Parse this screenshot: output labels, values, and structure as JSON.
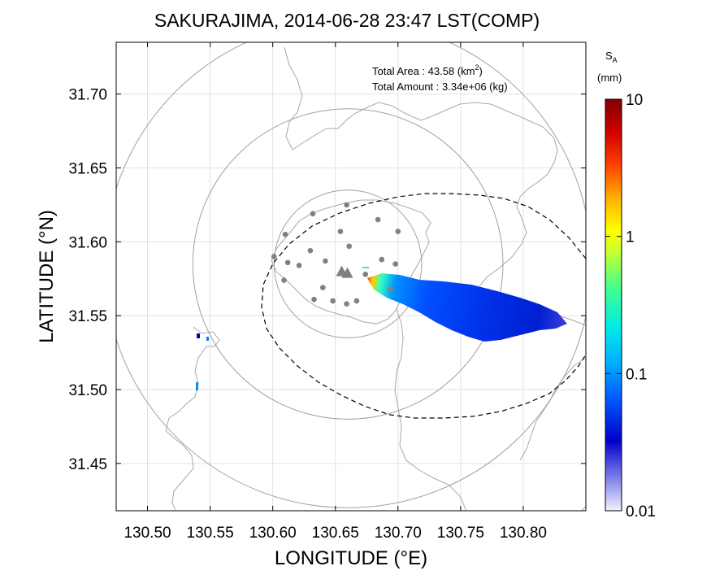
{
  "chart_data": {
    "type": "heatmap",
    "title": "SAKURAJIMA, 2014-06-28 23:47 LST(COMP)",
    "xlabel": "LONGITUDE (°E)",
    "ylabel": "LATITUDE (°N)",
    "xlim": [
      130.475,
      130.85
    ],
    "ylim": [
      31.418,
      31.735
    ],
    "xticks": [
      "130.50",
      "130.55",
      "130.60",
      "130.65",
      "130.70",
      "130.75",
      "130.80"
    ],
    "xtick_values": [
      130.5,
      130.55,
      130.6,
      130.65,
      130.7,
      130.75,
      130.8
    ],
    "yticks": [
      "31.45",
      "31.50",
      "31.55",
      "31.60",
      "31.65",
      "31.70"
    ],
    "ytick_values": [
      31.45,
      31.5,
      31.55,
      31.6,
      31.65,
      31.7
    ],
    "grid": true,
    "annotations": {
      "total_area_label": "Total Area   : 43.58 (km",
      "total_area_sup": "2",
      "total_area_close": ")",
      "total_amount": "Total Amount : 3.34e+06 (kg)"
    },
    "colorbar": {
      "title_main": "S",
      "title_sub": "A",
      "unit": "(mm)",
      "scale": "log",
      "range": [
        0.01,
        10
      ],
      "ticks": [
        "10",
        "1",
        "0.1",
        "0.01"
      ],
      "tick_values": [
        10,
        1,
        0.1,
        0.01
      ]
    },
    "vent": {
      "lon": 130.657,
      "lat": 31.58
    },
    "range_rings_center": {
      "lon": 130.66,
      "lat": 31.585
    },
    "range_ring_radii_deg": [
      0.05,
      0.105,
      0.165,
      0.23
    ],
    "stations": [
      [
        130.632,
        31.619
      ],
      [
        130.659,
        31.625
      ],
      [
        130.684,
        31.615
      ],
      [
        130.61,
        31.605
      ],
      [
        130.654,
        31.607
      ],
      [
        130.7,
        31.607
      ],
      [
        130.63,
        31.594
      ],
      [
        130.661,
        31.597
      ],
      [
        130.601,
        31.59
      ],
      [
        130.612,
        31.586
      ],
      [
        130.642,
        31.587
      ],
      [
        130.687,
        31.588
      ],
      [
        130.698,
        31.585
      ],
      [
        130.621,
        31.584
      ],
      [
        130.609,
        31.574
      ],
      [
        130.674,
        31.578
      ],
      [
        130.64,
        31.569
      ],
      [
        130.694,
        31.568
      ],
      [
        130.633,
        31.561
      ],
      [
        130.648,
        31.56
      ],
      [
        130.659,
        31.558
      ],
      [
        130.667,
        31.56
      ]
    ],
    "ash_plume": [
      {
        "lon": 130.672,
        "lat": 31.573,
        "value": 3.0
      },
      {
        "lon": 130.677,
        "lat": 31.572,
        "value": 0.6
      },
      {
        "lon": 130.685,
        "lat": 31.571,
        "value": 0.12
      },
      {
        "lon": 130.695,
        "lat": 31.569,
        "value": 0.06
      },
      {
        "lon": 130.71,
        "lat": 31.567,
        "value": 0.035
      },
      {
        "lon": 130.73,
        "lat": 31.562,
        "value": 0.03
      },
      {
        "lon": 130.75,
        "lat": 31.556,
        "value": 0.025
      },
      {
        "lon": 130.77,
        "lat": 31.551,
        "value": 0.022
      },
      {
        "lon": 130.79,
        "lat": 31.548,
        "value": 0.02
      },
      {
        "lon": 130.815,
        "lat": 31.546,
        "value": 0.018
      }
    ]
  }
}
